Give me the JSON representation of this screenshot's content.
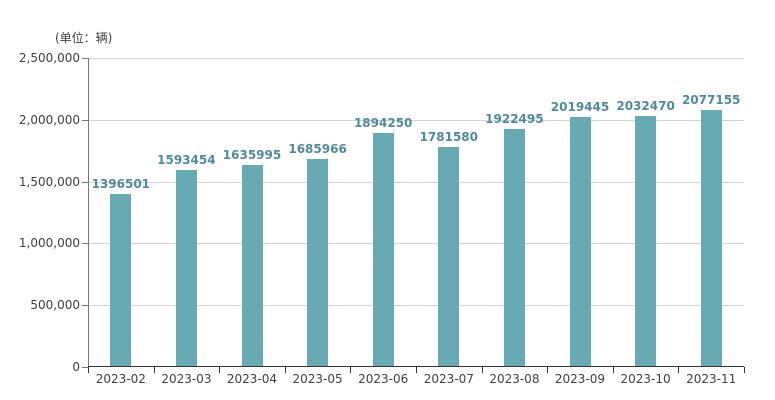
{
  "unit_label": "(单位：辆)",
  "colors": {
    "bar_fill": "#68aab4",
    "bar_value_label": "#4e8b9b",
    "axis_text": "#404040",
    "gridline": "#d4d4d4",
    "y_axis_line": "#777777",
    "x_axis_line": "#333333"
  },
  "chart_data": {
    "type": "bar",
    "title": "",
    "xlabel": "",
    "ylabel": "(单位：辆)",
    "categories": [
      "2023-02",
      "2023-03",
      "2023-04",
      "2023-05",
      "2023-06",
      "2023-07",
      "2023-08",
      "2023-09",
      "2023-10",
      "2023-11"
    ],
    "values": [
      1396501,
      1593454,
      1635995,
      1685966,
      1894250,
      1781580,
      1922495,
      2019445,
      2032470,
      2077155
    ],
    "bar_value_labels": [
      "1396501",
      "1593454",
      "1635995",
      "1685966",
      "1894250",
      "1781580",
      "1922495",
      "2019445",
      "2032470",
      "2077155"
    ],
    "ylim": [
      0,
      2500000
    ],
    "y_tick_values": [
      0,
      500000,
      1000000,
      1500000,
      2000000,
      2500000
    ],
    "y_tick_labels": [
      "0",
      "500,000",
      "1,000,000",
      "1,500,000",
      "2,000,000",
      "2,500,000"
    ],
    "grid": true,
    "legend": false
  }
}
